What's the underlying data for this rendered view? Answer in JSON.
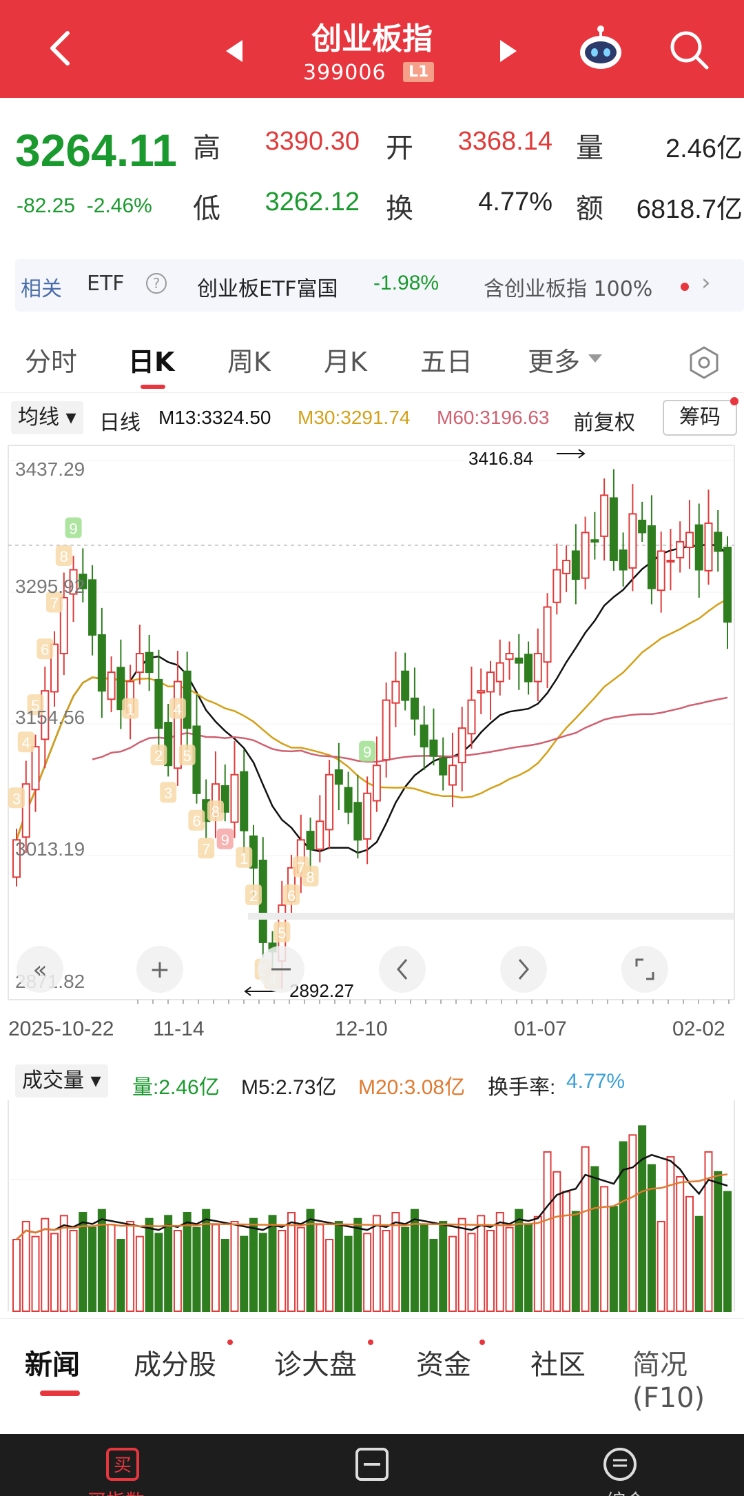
{
  "header": {
    "title": "创业板指",
    "code": "399006",
    "level_badge": "L1"
  },
  "quote": {
    "price": "3264.11",
    "change": "-82.25",
    "change_pct": "-2.46%",
    "high_label": "高",
    "high": "3390.30",
    "open_label": "开",
    "open": "3368.14",
    "volume_label": "量",
    "volume": "2.46亿",
    "low_label": "低",
    "low": "3262.12",
    "turnover_label": "换",
    "turnover": "4.77%",
    "amount_label": "额",
    "amount": "6818.7亿"
  },
  "related": {
    "tag": "相关",
    "etf": "ETF",
    "help": "?",
    "name": "创业板ETF富国",
    "pct": "-1.98%",
    "holding": "含创业板指 100%"
  },
  "tabs": [
    "分时",
    "日K",
    "周K",
    "月K",
    "五日",
    "更多"
  ],
  "indicators": {
    "ma_selector": "均线",
    "period": "日线",
    "m13": "M13:3324.50",
    "m30": "M30:3291.74",
    "m60": "M60:3196.63",
    "adjust": "前复权",
    "chip": "筹码"
  },
  "kline": {
    "y_ticks": [
      "3437.29",
      "3295.92",
      "3154.56",
      "3013.19",
      "2871.82"
    ],
    "x_ticks": [
      "2025-10-22",
      "11-14",
      "12-10",
      "01-07",
      "02-02"
    ],
    "high_annot": "3416.84",
    "low_annot": "2892.27",
    "reference_price": "3346.36"
  },
  "volume": {
    "selector": "成交量",
    "vol": "量:2.46亿",
    "m5": "M5:2.73亿",
    "m20": "M20:3.08亿",
    "turnover_label": "换手率:",
    "turnover": "4.77%"
  },
  "bottom_tabs": [
    "新闻",
    "成分股",
    "诊大盘",
    "资金",
    "社区",
    "简况(F10)"
  ],
  "footer": [
    "买指数",
    "",
    "综合"
  ],
  "colors": {
    "up": "#e03b3b",
    "down": "#2e7d1f",
    "brand": "#e8363f",
    "m13": "#111111",
    "m30": "#d4a017",
    "m60": "#d06070"
  },
  "chart_data": {
    "type": "candlestick",
    "ylim": [
      2871.82,
      3437.29
    ],
    "closes": [
      3030,
      3090,
      3130,
      3190,
      3240,
      3290,
      3320,
      3300,
      3250,
      3190,
      3210,
      3170,
      3200,
      3230,
      3210,
      3150,
      3110,
      3200,
      3150,
      3080,
      3050,
      3090,
      3060,
      3100,
      3040,
      3000,
      2920,
      2910,
      2960,
      3000,
      3030,
      3020,
      3050,
      3100,
      3090,
      3060,
      3030,
      3080,
      3110,
      3180,
      3200,
      3180,
      3160,
      3130,
      3120,
      3100,
      3110,
      3150,
      3180,
      3190,
      3210,
      3220,
      3230,
      3220,
      3200,
      3230,
      3280,
      3320,
      3330,
      3310,
      3360,
      3350,
      3400,
      3330,
      3320,
      3380,
      3360,
      3300,
      3340,
      3330,
      3350,
      3360,
      3320,
      3370,
      3340,
      3264
    ]
  }
}
